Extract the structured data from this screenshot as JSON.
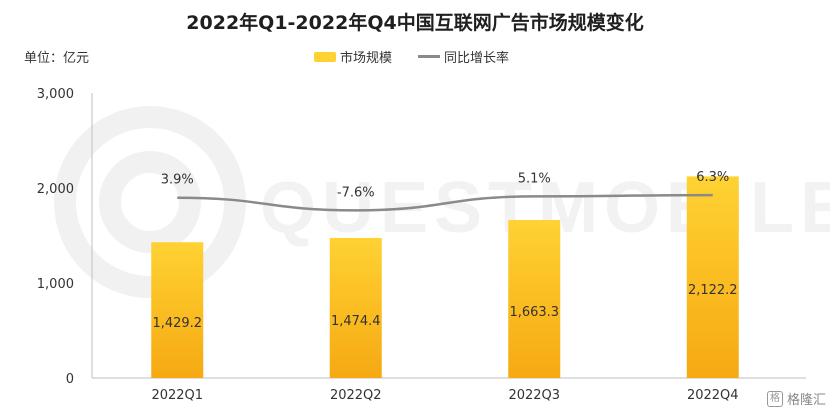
{
  "colors": {
    "bar_top": "#FFD233",
    "bar_bottom": "#F6A912",
    "line": "#8A8A8A",
    "axis": "#BFBFBF"
  },
  "chart_data": {
    "type": "bar",
    "title": "2022年Q1-2022年Q4中国互联网广告市场规模变化",
    "unit_label": "单位：亿元",
    "categories": [
      "2022Q1",
      "2022Q2",
      "2022Q3",
      "2022Q4"
    ],
    "series": [
      {
        "name": "市场规模",
        "type": "bar",
        "values": [
          1429.2,
          1474.4,
          1663.3,
          2122.2
        ],
        "labels": [
          "1,429.2",
          "1,474.4",
          "1,663.3",
          "2,122.2"
        ]
      },
      {
        "name": "同比增长率",
        "type": "line",
        "values": [
          3.9,
          -7.6,
          5.1,
          6.3
        ],
        "labels": [
          "3.9%",
          "-7.6%",
          "5.1%",
          "6.3%"
        ]
      }
    ],
    "yticks": [
      "0",
      "1,000",
      "2,000",
      "3,000"
    ],
    "ylim": [
      0,
      3000
    ],
    "grid": false,
    "legend_position": "top-center"
  },
  "watermark_text": "QUESTMOBILE",
  "brand": {
    "icon": "格",
    "name": "格隆汇"
  }
}
